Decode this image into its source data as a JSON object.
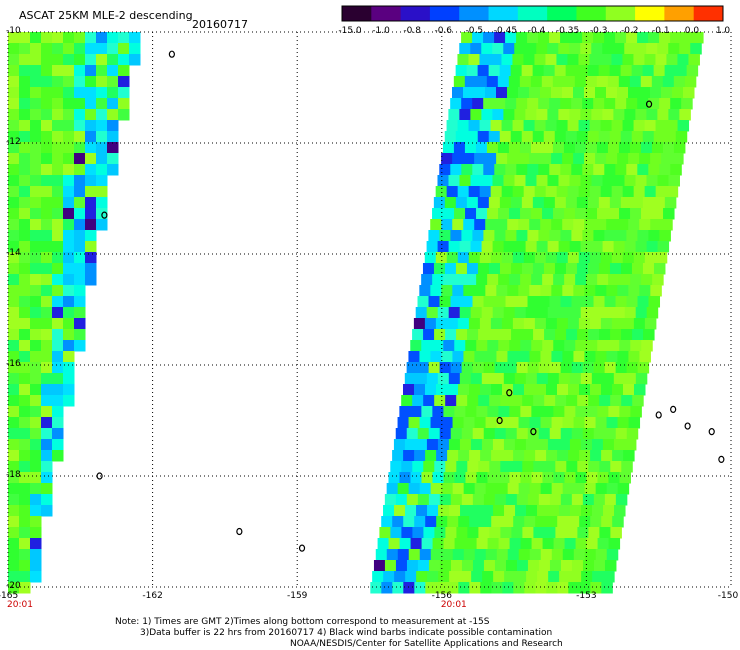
{
  "header": {
    "title": "ASCAT 25KM MLE-2 descending",
    "date": "20160717"
  },
  "colorbar": {
    "labels": [
      "-15.0",
      "-1.0",
      "-0.8",
      "-0.6",
      "-0.5",
      "-0.45",
      "-0.4",
      "-0.35",
      "-0.3",
      "-0.2",
      "-0.1",
      "0.0",
      "1.0"
    ],
    "colors": [
      "#2a0030",
      "#5a0080",
      "#2a10c8",
      "#0040ff",
      "#0090ff",
      "#00d8ff",
      "#00ffc0",
      "#00ff60",
      "#40ff20",
      "#90ff20",
      "#ffff00",
      "#ffa000",
      "#ff3000"
    ]
  },
  "axes": {
    "y_ticks": [
      "-10",
      "-12",
      "-14",
      "-16",
      "-18",
      "-20"
    ],
    "x_ticks": [
      "-165",
      "-162",
      "-159",
      "-156",
      "-153",
      "-150"
    ],
    "lat_range": [
      -20,
      -10
    ],
    "lon_range": [
      -165,
      -150
    ]
  },
  "time_labels": [
    {
      "text": "20:01",
      "lon": -165
    },
    {
      "text": "20:01",
      "lon": -156
    }
  ],
  "notes": {
    "line1": "Note: 1) Times are GMT 2)Times along bottom correspond to measurement at -15S",
    "line2": "3)Data buffer is 22 hrs from 20160717 4) Black wind barbs indicate possible contamination",
    "line3": "NOAA/NESDIS/Center for Satellite Applications and Research"
  },
  "swaths": [
    {
      "name": "west-swath",
      "lon_left_top": -165,
      "lon_right_top": -162.4,
      "lon_left_bottom": -165,
      "lon_right_bottom": -164.6,
      "lat_top": -10,
      "lat_bottom": -20
    },
    {
      "name": "east-swath",
      "lon_left_top": -155.6,
      "lon_right_top": -150.6,
      "lon_left_bottom": -157.5,
      "lon_right_bottom": -152.5,
      "lat_top": -10,
      "lat_bottom": -20
    }
  ],
  "islands": [
    {
      "lon": -161.6,
      "lat": -10.4
    },
    {
      "lon": -163.0,
      "lat": -13.3
    },
    {
      "lon": -163.1,
      "lat": -18.0
    },
    {
      "lon": -160.2,
      "lat": -19.0
    },
    {
      "lon": -158.9,
      "lat": -19.3
    },
    {
      "lon": -154.6,
      "lat": -16.5
    },
    {
      "lon": -154.8,
      "lat": -17.0
    },
    {
      "lon": -154.1,
      "lat": -17.2
    },
    {
      "lon": -151.5,
      "lat": -16.9
    },
    {
      "lon": -151.2,
      "lat": -16.8
    },
    {
      "lon": -150.9,
      "lat": -17.1
    },
    {
      "lon": -150.4,
      "lat": -17.2
    },
    {
      "lon": -150.2,
      "lat": -17.7
    },
    {
      "lon": -151.7,
      "lat": -11.3
    }
  ]
}
